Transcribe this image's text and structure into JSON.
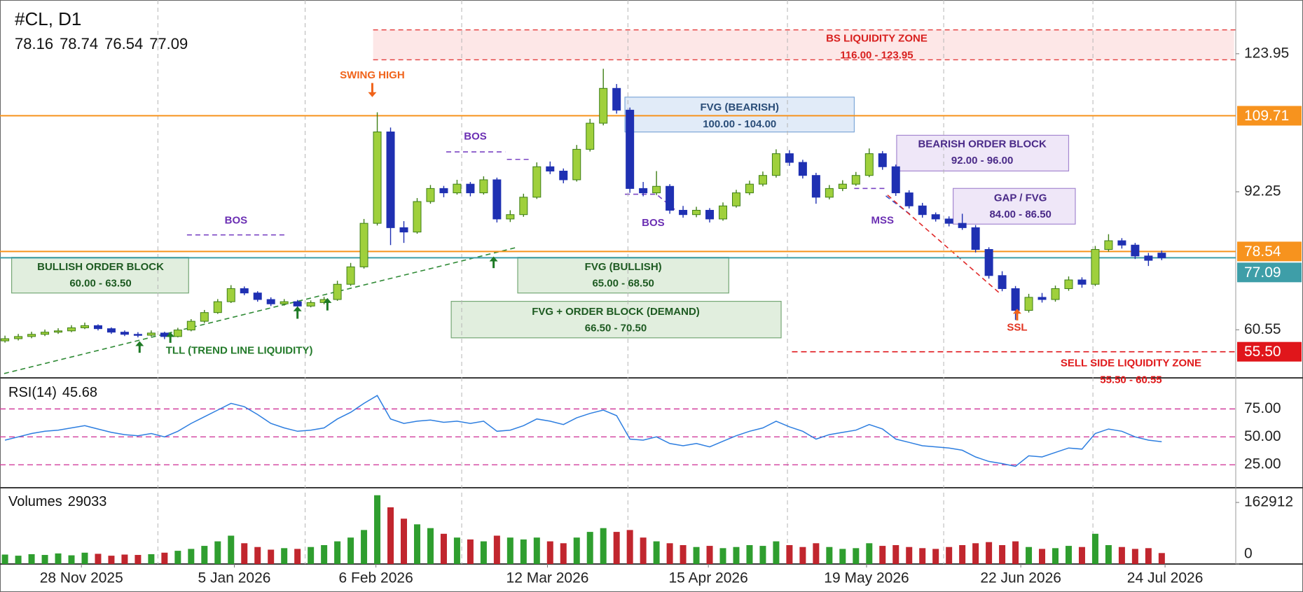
{
  "chart_data": {
    "type": "candlestick",
    "symbol": "#CL, D1",
    "up_color": "#9fd03c",
    "up_border": "#3f7f16",
    "down_color": "#1f30b2",
    "ohlc": [
      [
        58.0,
        59.2,
        57.6,
        58.5
      ],
      [
        58.5,
        59.6,
        58.1,
        59
      ],
      [
        59,
        60.1,
        58.6,
        59.5
      ],
      [
        59.5,
        60.6,
        59.1,
        60
      ],
      [
        60,
        60.9,
        59.6,
        60.3
      ],
      [
        60.3,
        61.6,
        60,
        61
      ],
      [
        61,
        62.2,
        60.7,
        61.5
      ],
      [
        61.5,
        61.8,
        60.4,
        60.8
      ],
      [
        60.8,
        61.1,
        59.6,
        60
      ],
      [
        60,
        60.4,
        59.1,
        59.5
      ],
      [
        59.5,
        60,
        58.8,
        59.3
      ],
      [
        59.3,
        60.4,
        59,
        59.8
      ],
      [
        59.8,
        60.1,
        58.4,
        59
      ],
      [
        59,
        61,
        58.8,
        60.5
      ],
      [
        60.5,
        63,
        60.2,
        62.5
      ],
      [
        62.5,
        65.1,
        62.1,
        64.5
      ],
      [
        64.5,
        67.6,
        64.2,
        67
      ],
      [
        67,
        70.8,
        66.7,
        70
      ],
      [
        70,
        70.5,
        68.5,
        69
      ],
      [
        69,
        69.4,
        67,
        67.5
      ],
      [
        67.5,
        68,
        66,
        66.5
      ],
      [
        66.5,
        67.6,
        66.1,
        67
      ],
      [
        67,
        67.4,
        65.5,
        66
      ],
      [
        66,
        67.3,
        65.7,
        66.8
      ],
      [
        66.8,
        68.1,
        66.4,
        67.5
      ],
      [
        67.5,
        71.8,
        67.2,
        71
      ],
      [
        71,
        75.9,
        70.6,
        75
      ],
      [
        75,
        86,
        74.6,
        85
      ],
      [
        85,
        110.5,
        84.5,
        106
      ],
      [
        106,
        107,
        80,
        84
      ],
      [
        84,
        85.5,
        80.5,
        83
      ],
      [
        83,
        90.8,
        82.6,
        90
      ],
      [
        90,
        93.8,
        89.5,
        93
      ],
      [
        93,
        93.6,
        91,
        92
      ],
      [
        92,
        95,
        91.6,
        94
      ],
      [
        94,
        94.5,
        91.2,
        92
      ],
      [
        92,
        95.8,
        91.6,
        95
      ],
      [
        95,
        95.5,
        85.2,
        86
      ],
      [
        86,
        88,
        85.3,
        87
      ],
      [
        87,
        91.8,
        86.5,
        91
      ],
      [
        91,
        99,
        90.6,
        98
      ],
      [
        98,
        99.2,
        96.3,
        97
      ],
      [
        97,
        97.6,
        94.2,
        95
      ],
      [
        95,
        103,
        94.6,
        102
      ],
      [
        102,
        109,
        101.5,
        108
      ],
      [
        108,
        120.5,
        107.5,
        116
      ],
      [
        116,
        117,
        110.2,
        111
      ],
      [
        111,
        111.6,
        92,
        93
      ],
      [
        93,
        94.5,
        91.2,
        92
      ],
      [
        92,
        97,
        91.5,
        93.5
      ],
      [
        93.5,
        94,
        87.2,
        88
      ],
      [
        88,
        89,
        86.3,
        87
      ],
      [
        87,
        88.8,
        86.4,
        88
      ],
      [
        88,
        88.5,
        85.2,
        86
      ],
      [
        86,
        89.8,
        85.6,
        89
      ],
      [
        89,
        92.7,
        88.6,
        92
      ],
      [
        92,
        94.8,
        91.5,
        94
      ],
      [
        94,
        96.9,
        93.5,
        96
      ],
      [
        96,
        102,
        95.5,
        101
      ],
      [
        101,
        101.8,
        98.2,
        99
      ],
      [
        99,
        99.6,
        95.3,
        96
      ],
      [
        96,
        96.6,
        89.5,
        91
      ],
      [
        91,
        93.8,
        90.5,
        93
      ],
      [
        93,
        94.9,
        92.4,
        94
      ],
      [
        94,
        96.8,
        93.6,
        96
      ],
      [
        96,
        102.2,
        95.6,
        101
      ],
      [
        101,
        101.6,
        97.3,
        98
      ],
      [
        98,
        98.5,
        91.3,
        92
      ],
      [
        92,
        92.6,
        88.4,
        89
      ],
      [
        89,
        89.7,
        86.3,
        87
      ],
      [
        87,
        87.5,
        85.4,
        86
      ],
      [
        86,
        86.6,
        84.3,
        85
      ],
      [
        85,
        87.2,
        83.5,
        84
      ],
      [
        84,
        84.6,
        78.3,
        79
      ],
      [
        79,
        79.5,
        72.3,
        73
      ],
      [
        73,
        74,
        69.4,
        70
      ],
      [
        70,
        70.6,
        62.8,
        65
      ],
      [
        65,
        68.8,
        64.5,
        68
      ],
      [
        68,
        69,
        66.8,
        67.5
      ],
      [
        67.5,
        70.7,
        67,
        70
      ],
      [
        70,
        72.8,
        69.5,
        72
      ],
      [
        72,
        72.6,
        70.2,
        71
      ],
      [
        71,
        79.8,
        70.6,
        79
      ],
      [
        79,
        82.5,
        78.5,
        81
      ],
      [
        81,
        81.6,
        79.2,
        80
      ],
      [
        80,
        80.5,
        76.8,
        77.5
      ],
      [
        77.5,
        78.2,
        75.2,
        76.5
      ],
      [
        78.16,
        78.74,
        76.54,
        77.09
      ]
    ],
    "ylim": [
      49.5,
      136.3
    ],
    "yticks": [
      123.95,
      92.25,
      60.55
    ],
    "price_lines": [
      {
        "value": 109.71,
        "color": "#f7931e"
      },
      {
        "value": 78.54,
        "color": "#f7931e"
      },
      {
        "value": 77.09,
        "color": "#3e9ea8"
      },
      {
        "value": 55.5,
        "label": "55.50",
        "color": "#e0161b",
        "style": "dashed"
      }
    ],
    "xticks": [
      {
        "value": 5.75,
        "label": "28 Nov 2025"
      },
      {
        "value": 17.25,
        "label": "5 Jan 2026"
      },
      {
        "value": 27.9,
        "label": "6 Feb 2026"
      },
      {
        "value": 40.8,
        "label": "12 Mar 2026"
      },
      {
        "value": 52.9,
        "label": "15 Apr 2026"
      },
      {
        "value": 64.8,
        "label": "19 May 2026"
      },
      {
        "value": 76.4,
        "label": "22 Jun 2026"
      },
      {
        "value": 87.25,
        "label": "24 Jul 2026"
      }
    ],
    "rsi": {
      "name": "RSI(14)",
      "color": "#2d7ee0",
      "level_color": "#d23f9d",
      "ylim": [
        4.4,
        102.2
      ],
      "yticks": [
        {
          "value": 75,
          "label": "75.00"
        },
        {
          "value": 50,
          "label": "50.00"
        },
        {
          "value": 25,
          "label": "25.00"
        }
      ],
      "values": [
        47,
        50,
        53,
        55,
        56,
        58,
        60,
        57,
        54,
        52,
        51,
        53,
        50,
        55,
        62,
        68,
        74,
        80,
        77,
        70,
        62,
        58,
        55,
        56,
        58,
        66,
        72,
        80,
        87,
        66,
        62,
        64,
        65,
        63,
        64,
        62,
        64,
        55,
        56,
        60,
        66,
        64,
        61,
        67,
        71,
        74,
        69,
        48,
        47,
        50,
        44,
        42,
        44,
        41,
        46,
        51,
        55,
        58,
        64,
        59,
        55,
        48,
        52,
        54,
        56,
        61,
        57,
        48,
        45,
        42,
        41,
        40,
        38,
        32,
        28,
        26,
        23.5,
        33,
        32,
        36,
        40,
        39,
        53,
        57,
        55,
        50,
        47,
        45.68
      ]
    },
    "volume": {
      "name": "Volumes",
      "up_color": "#2f9e2f",
      "down_color": "#c1262e",
      "ylim": [
        0,
        200000
      ],
      "yticks": [
        0,
        162912
      ],
      "values": [
        25000,
        22000,
        26000,
        24000,
        28000,
        23000,
        30000,
        27000,
        22000,
        25000,
        24000,
        26000,
        30000,
        35000,
        40000,
        48000,
        60000,
        75000,
        55000,
        45000,
        38000,
        42000,
        40000,
        45000,
        50000,
        60000,
        70000,
        90000,
        182000,
        150000,
        120000,
        105000,
        95000,
        80000,
        70000,
        65000,
        60000,
        75000,
        70000,
        65000,
        70000,
        60000,
        55000,
        70000,
        85000,
        95000,
        85000,
        90000,
        70000,
        60000,
        55000,
        50000,
        45000,
        48000,
        42000,
        45000,
        50000,
        48000,
        60000,
        50000,
        45000,
        55000,
        45000,
        40000,
        42000,
        55000,
        48000,
        50000,
        45000,
        42000,
        40000,
        45000,
        50000,
        55000,
        58000,
        50000,
        60000,
        45000,
        40000,
        42000,
        48000,
        45000,
        80000,
        50000,
        45000,
        40000,
        42000,
        29033
      ]
    },
    "annotations": [
      {
        "text": "BS LIQUIDITY ZONE",
        "range": "116.00 - 123.95"
      },
      {
        "text": "SWING HIGH"
      },
      {
        "text": "FVG (BEARISH)",
        "range": "100.00 - 104.00"
      },
      {
        "text": "BOS"
      },
      {
        "text": "BEARISH ORDER BLOCK",
        "range": "92.00 - 96.00"
      },
      {
        "text": "GAP / FVG",
        "range": "84.00 - 86.50"
      },
      {
        "text": "BOS"
      },
      {
        "text": "BOS"
      },
      {
        "text": "MSS"
      },
      {
        "text": "BULLISH ORDER BLOCK",
        "range": "60.00 - 63.50"
      },
      {
        "text": "FVG (BULLISH)",
        "range": "65.00 - 68.50"
      },
      {
        "text": "FVG + ORDER BLOCK (DEMAND)",
        "range": "66.50 - 70.50"
      },
      {
        "text": "TLL (TREND LINE LIQUIDITY)"
      },
      {
        "text": "SSL"
      },
      {
        "text": "SELL SIDE LIQUIDITY ZONE",
        "range": "55.50 - 60.55"
      }
    ]
  }
}
